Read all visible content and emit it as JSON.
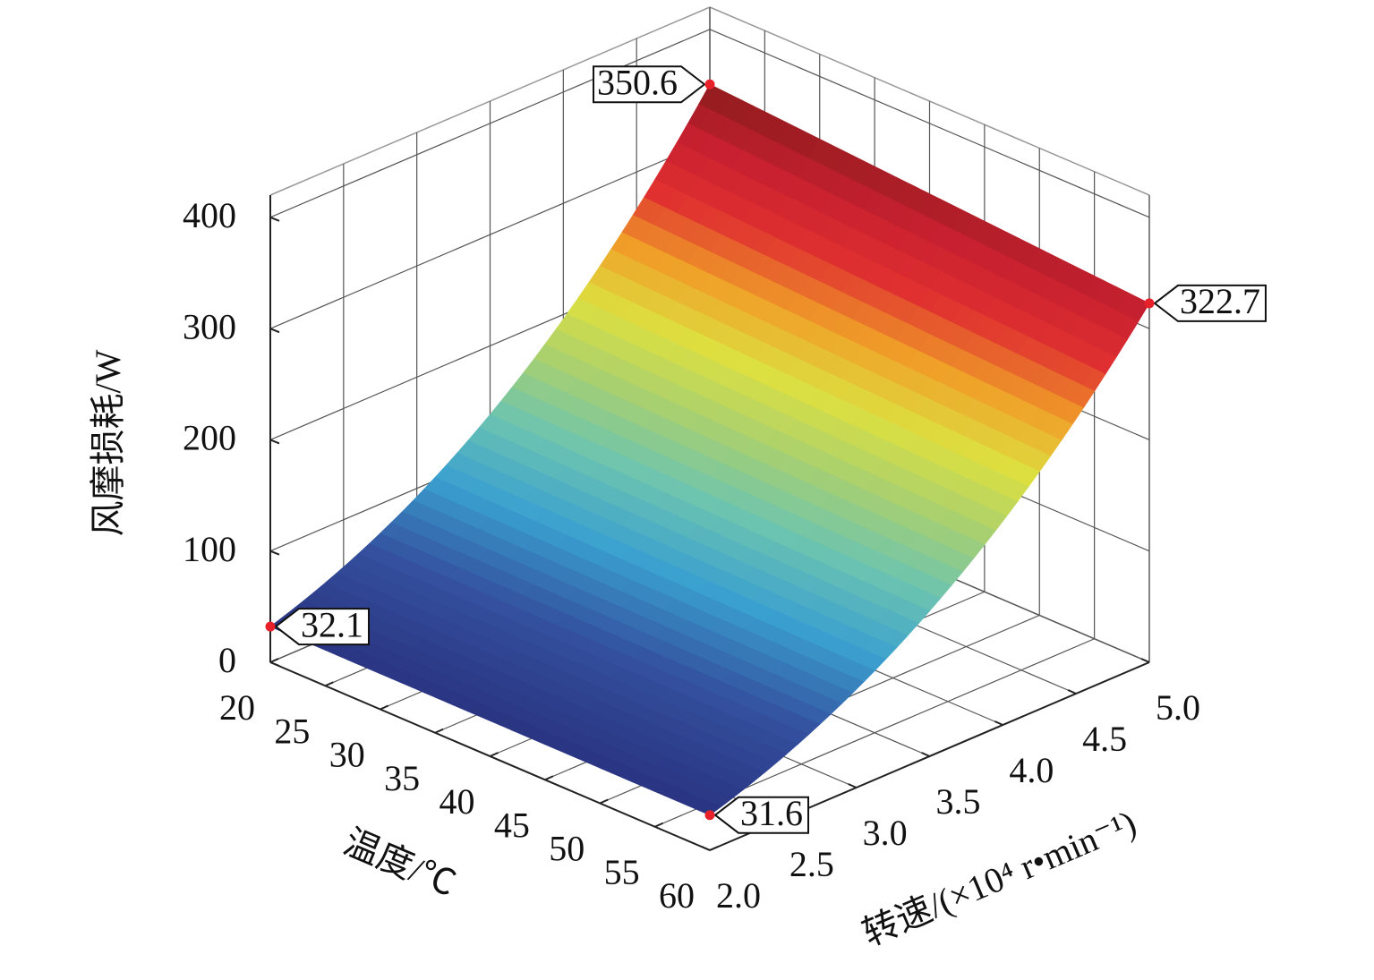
{
  "chart_data": {
    "type": "surface",
    "xlabel": "温度/℃",
    "ylabel": "转速/(×10⁴ r•min⁻¹)",
    "zlabel": "风摩损耗/W",
    "xlim": [
      20,
      60
    ],
    "xticks": [
      20,
      25,
      30,
      35,
      40,
      45,
      50,
      55,
      60
    ],
    "ylim": [
      2,
      5
    ],
    "yticks": [
      {
        "value": 2,
        "label": "2.0"
      },
      {
        "value": 2.5,
        "label": "2.5"
      },
      {
        "value": 3,
        "label": "3.0"
      },
      {
        "value": 3.5,
        "label": "3.5"
      },
      {
        "value": 4,
        "label": "4.0"
      },
      {
        "value": 4.5,
        "label": "4.5"
      },
      {
        "value": 5,
        "label": "5.0"
      }
    ],
    "zlim": [
      0,
      420
    ],
    "zticks": [
      0,
      100,
      200,
      300,
      400
    ],
    "grid": true,
    "colormap": [
      "#2a3582",
      "#34519f",
      "#3aa0d0",
      "#6cc4b0",
      "#a8d070",
      "#dde040",
      "#f0a028",
      "#e03030",
      "#c82030",
      "#8c1c1c"
    ],
    "points": [
      {
        "x": 20,
        "y": 2,
        "z": 32.1
      },
      {
        "x": 60,
        "y": 2,
        "z": 31.6
      },
      {
        "x": 20,
        "y": 5,
        "z": 350.6
      },
      {
        "x": 60,
        "y": 5,
        "z": 322.7
      }
    ],
    "point_color": "#e8202a"
  }
}
